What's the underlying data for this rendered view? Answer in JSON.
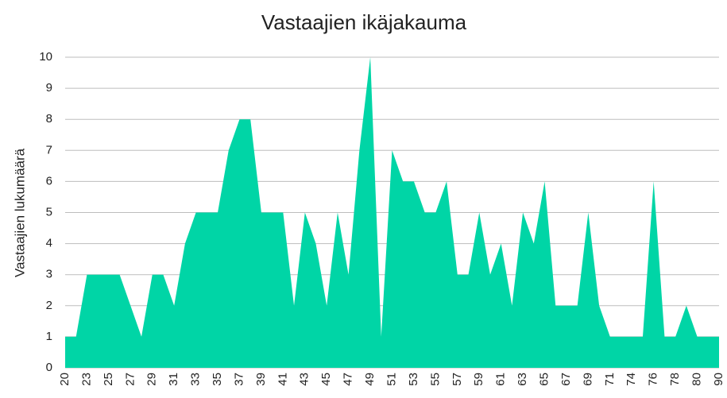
{
  "chart_data": {
    "type": "area",
    "title": "Vastaajien ikäjakauma",
    "y_label": "Vastaajien lukumäärä",
    "categories": [
      "20",
      null,
      "23",
      null,
      "25",
      null,
      "27",
      null,
      "29",
      null,
      "31",
      null,
      "33",
      null,
      "35",
      null,
      "37",
      null,
      "39",
      null,
      "41",
      null,
      "43",
      null,
      "45",
      null,
      "47",
      null,
      "49",
      null,
      "51",
      null,
      "53",
      null,
      "55",
      null,
      "57",
      null,
      "59",
      null,
      "61",
      null,
      "63",
      null,
      "65",
      null,
      "67",
      null,
      "69",
      null,
      "71",
      null,
      "74",
      null,
      "76",
      null,
      "78",
      null,
      "80",
      null,
      "90"
    ],
    "values": [
      1,
      1,
      3,
      3,
      3,
      3,
      2,
      1,
      3,
      3,
      2,
      4,
      5,
      5,
      5,
      7,
      8,
      8,
      5,
      5,
      5,
      2,
      5,
      4,
      2,
      5,
      3,
      7,
      10,
      1,
      7,
      6,
      6,
      5,
      5,
      6,
      3,
      3,
      5,
      3,
      4,
      2,
      5,
      4,
      6,
      2,
      2,
      2,
      5,
      2,
      1,
      1,
      1,
      1,
      6,
      1,
      1,
      2,
      1,
      1,
      1
    ],
    "color": "#00d5a6",
    "ylim": [
      0,
      10
    ],
    "yticks": [
      0,
      1,
      2,
      3,
      4,
      5,
      6,
      7,
      8,
      9,
      10
    ],
    "grid": true
  }
}
